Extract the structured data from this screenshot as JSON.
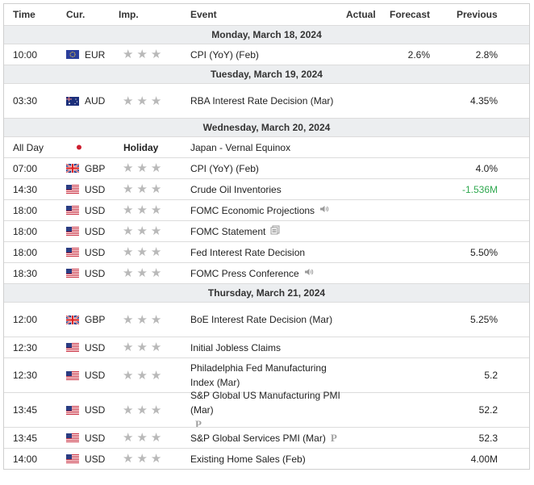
{
  "header": {
    "time": "Time",
    "currency": "Cur.",
    "importance": "Imp.",
    "event": "Event",
    "actual": "Actual",
    "forecast": "Forecast",
    "previous": "Previous"
  },
  "colors": {
    "star": "#b9b9b9",
    "day_bg": "#eceef0",
    "negative": "#2fa84f"
  },
  "days": [
    {
      "label": "Monday, March 18, 2024",
      "events": [
        {
          "time": "10:00",
          "flag": "EU",
          "currency": "EUR",
          "importance": 3,
          "event": "CPI (YoY) (Feb)",
          "actual": "",
          "forecast": "2.6%",
          "previous": "2.8%"
        }
      ]
    },
    {
      "label": "Tuesday, March 19, 2024",
      "events": [
        {
          "time": "03:30",
          "flag": "AU",
          "currency": "AUD",
          "importance": 3,
          "event": "RBA Interest Rate Decision (Mar)",
          "actual": "",
          "forecast": "",
          "previous": "4.35%"
        }
      ]
    },
    {
      "label": "Wednesday, March 20, 2024",
      "events": [
        {
          "time": "All Day",
          "flag": "JP",
          "currency": "",
          "holiday": "Holiday",
          "event": "Japan - Vernal Equinox",
          "actual": "",
          "forecast": "",
          "previous": ""
        },
        {
          "time": "07:00",
          "flag": "GB",
          "currency": "GBP",
          "importance": 3,
          "event": "CPI (YoY) (Feb)",
          "actual": "",
          "forecast": "",
          "previous": "4.0%"
        },
        {
          "time": "14:30",
          "flag": "US",
          "currency": "USD",
          "importance": 3,
          "event": "Crude Oil Inventories",
          "actual": "",
          "forecast": "",
          "previous": "-1.536M"
        },
        {
          "time": "18:00",
          "flag": "US",
          "currency": "USD",
          "importance": 3,
          "event": "FOMC Economic Projections",
          "icon": "speaker-icon",
          "actual": "",
          "forecast": "",
          "previous": ""
        },
        {
          "time": "18:00",
          "flag": "US",
          "currency": "USD",
          "importance": 3,
          "event": "FOMC Statement",
          "icon": "document-icon",
          "actual": "",
          "forecast": "",
          "previous": ""
        },
        {
          "time": "18:00",
          "flag": "US",
          "currency": "USD",
          "importance": 3,
          "event": "Fed Interest Rate Decision",
          "actual": "",
          "forecast": "",
          "previous": "5.50%"
        },
        {
          "time": "18:30",
          "flag": "US",
          "currency": "USD",
          "importance": 3,
          "event": "FOMC Press Conference",
          "icon": "speaker-icon",
          "actual": "",
          "forecast": "",
          "previous": ""
        }
      ]
    },
    {
      "label": "Thursday, March 21, 2024",
      "events": [
        {
          "time": "12:00",
          "flag": "GB",
          "currency": "GBP",
          "importance": 3,
          "event": "BoE Interest Rate Decision (Mar)",
          "actual": "",
          "forecast": "",
          "previous": "5.25%"
        },
        {
          "time": "12:30",
          "flag": "US",
          "currency": "USD",
          "importance": 3,
          "event": "Initial Jobless Claims",
          "actual": "",
          "forecast": "",
          "previous": ""
        },
        {
          "time": "12:30",
          "flag": "US",
          "currency": "USD",
          "importance": 3,
          "event": "Philadelphia Fed Manufacturing Index (Mar)",
          "actual": "",
          "forecast": "",
          "previous": "5.2"
        },
        {
          "time": "13:45",
          "flag": "US",
          "currency": "USD",
          "importance": 3,
          "event": "S&P Global US Manufacturing PMI (Mar)",
          "icon": "preliminary-icon",
          "actual": "",
          "forecast": "",
          "previous": "52.2"
        },
        {
          "time": "13:45",
          "flag": "US",
          "currency": "USD",
          "importance": 3,
          "event": "S&P Global Services PMI (Mar)",
          "icon": "preliminary-icon",
          "actual": "",
          "forecast": "",
          "previous": "52.3"
        },
        {
          "time": "14:00",
          "flag": "US",
          "currency": "USD",
          "importance": 3,
          "event": "Existing Home Sales (Feb)",
          "actual": "",
          "forecast": "",
          "previous": "4.00M"
        }
      ]
    }
  ]
}
